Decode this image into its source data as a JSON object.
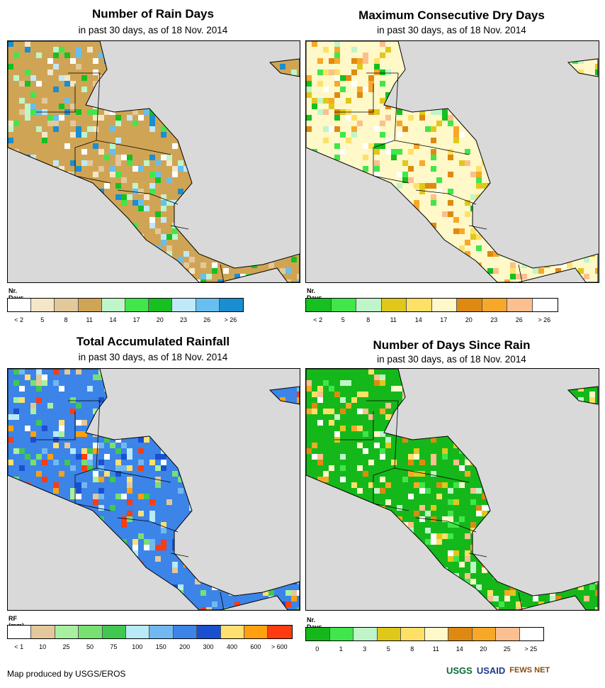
{
  "panels": [
    {
      "title": "Number of Rain Days",
      "subtitle": "in past 30 days, as of 18 Nov. 2014",
      "legend_label": "Nr. Days",
      "colors": [
        "#ffffff",
        "#f5e6c8",
        "#e2c89a",
        "#cfa555",
        "#bff5c8",
        "#40e64a",
        "#15c020",
        "#bfe8f8",
        "#66bff0",
        "#1a8ed0"
      ],
      "ticks": [
        "< 2",
        "5",
        "8",
        "11",
        "14",
        "17",
        "20",
        "23",
        "26",
        "> 26"
      ],
      "land_base": "#cfa555"
    },
    {
      "title": "Maximum Consecutive Dry Days",
      "subtitle": "in past 30 days, as of 18 Nov. 2014",
      "legend_label": "Nr. Days",
      "colors": [
        "#15c020",
        "#40e64a",
        "#bff5c8",
        "#e0c81a",
        "#ffe066",
        "#fff8c8",
        "#de8a10",
        "#f8a828",
        "#fcbf8f",
        "#ffffff"
      ],
      "ticks": [
        "< 2",
        "5",
        "8",
        "11",
        "14",
        "17",
        "20",
        "23",
        "26",
        "> 26"
      ],
      "land_base": "#fff8c8"
    },
    {
      "title": "Total Accumulated Rainfall",
      "subtitle": "in past 30 days, as of 18 Nov. 2014",
      "legend_label": "RF (mm)",
      "colors": [
        "#ffffff",
        "#e2c89a",
        "#a8f0a0",
        "#78e070",
        "#40c850",
        "#b8eaf8",
        "#72b8f0",
        "#3c84e8",
        "#1a50d0",
        "#ffe070",
        "#ffa010",
        "#ff3c10"
      ],
      "ticks": [
        "< 1",
        "10",
        "25",
        "50",
        "75",
        "100",
        "150",
        "200",
        "300",
        "400",
        "600",
        "> 600"
      ],
      "land_base": "#3c84e8"
    },
    {
      "title": "Number of Days Since Rain",
      "subtitle": "in past 30 days, as of 18 Nov. 2014",
      "legend_label": "Nr. Days",
      "colors": [
        "#15b81a",
        "#40e64a",
        "#bff5c8",
        "#e0c81a",
        "#ffe066",
        "#fff8c8",
        "#de8a10",
        "#f8a828",
        "#fcbf8f",
        "#ffffff"
      ],
      "ticks": [
        "0",
        "1",
        "3",
        "5",
        "8",
        "11",
        "14",
        "20",
        "25",
        "> 25"
      ],
      "land_base": "#15b81a"
    }
  ],
  "footer": {
    "credit": "Map produced by USGS/EROS",
    "logos": [
      "USGS",
      "USAID",
      "FEWS NET"
    ]
  },
  "colors": {
    "ocean": "#d9d9d9",
    "border": "#000000"
  }
}
